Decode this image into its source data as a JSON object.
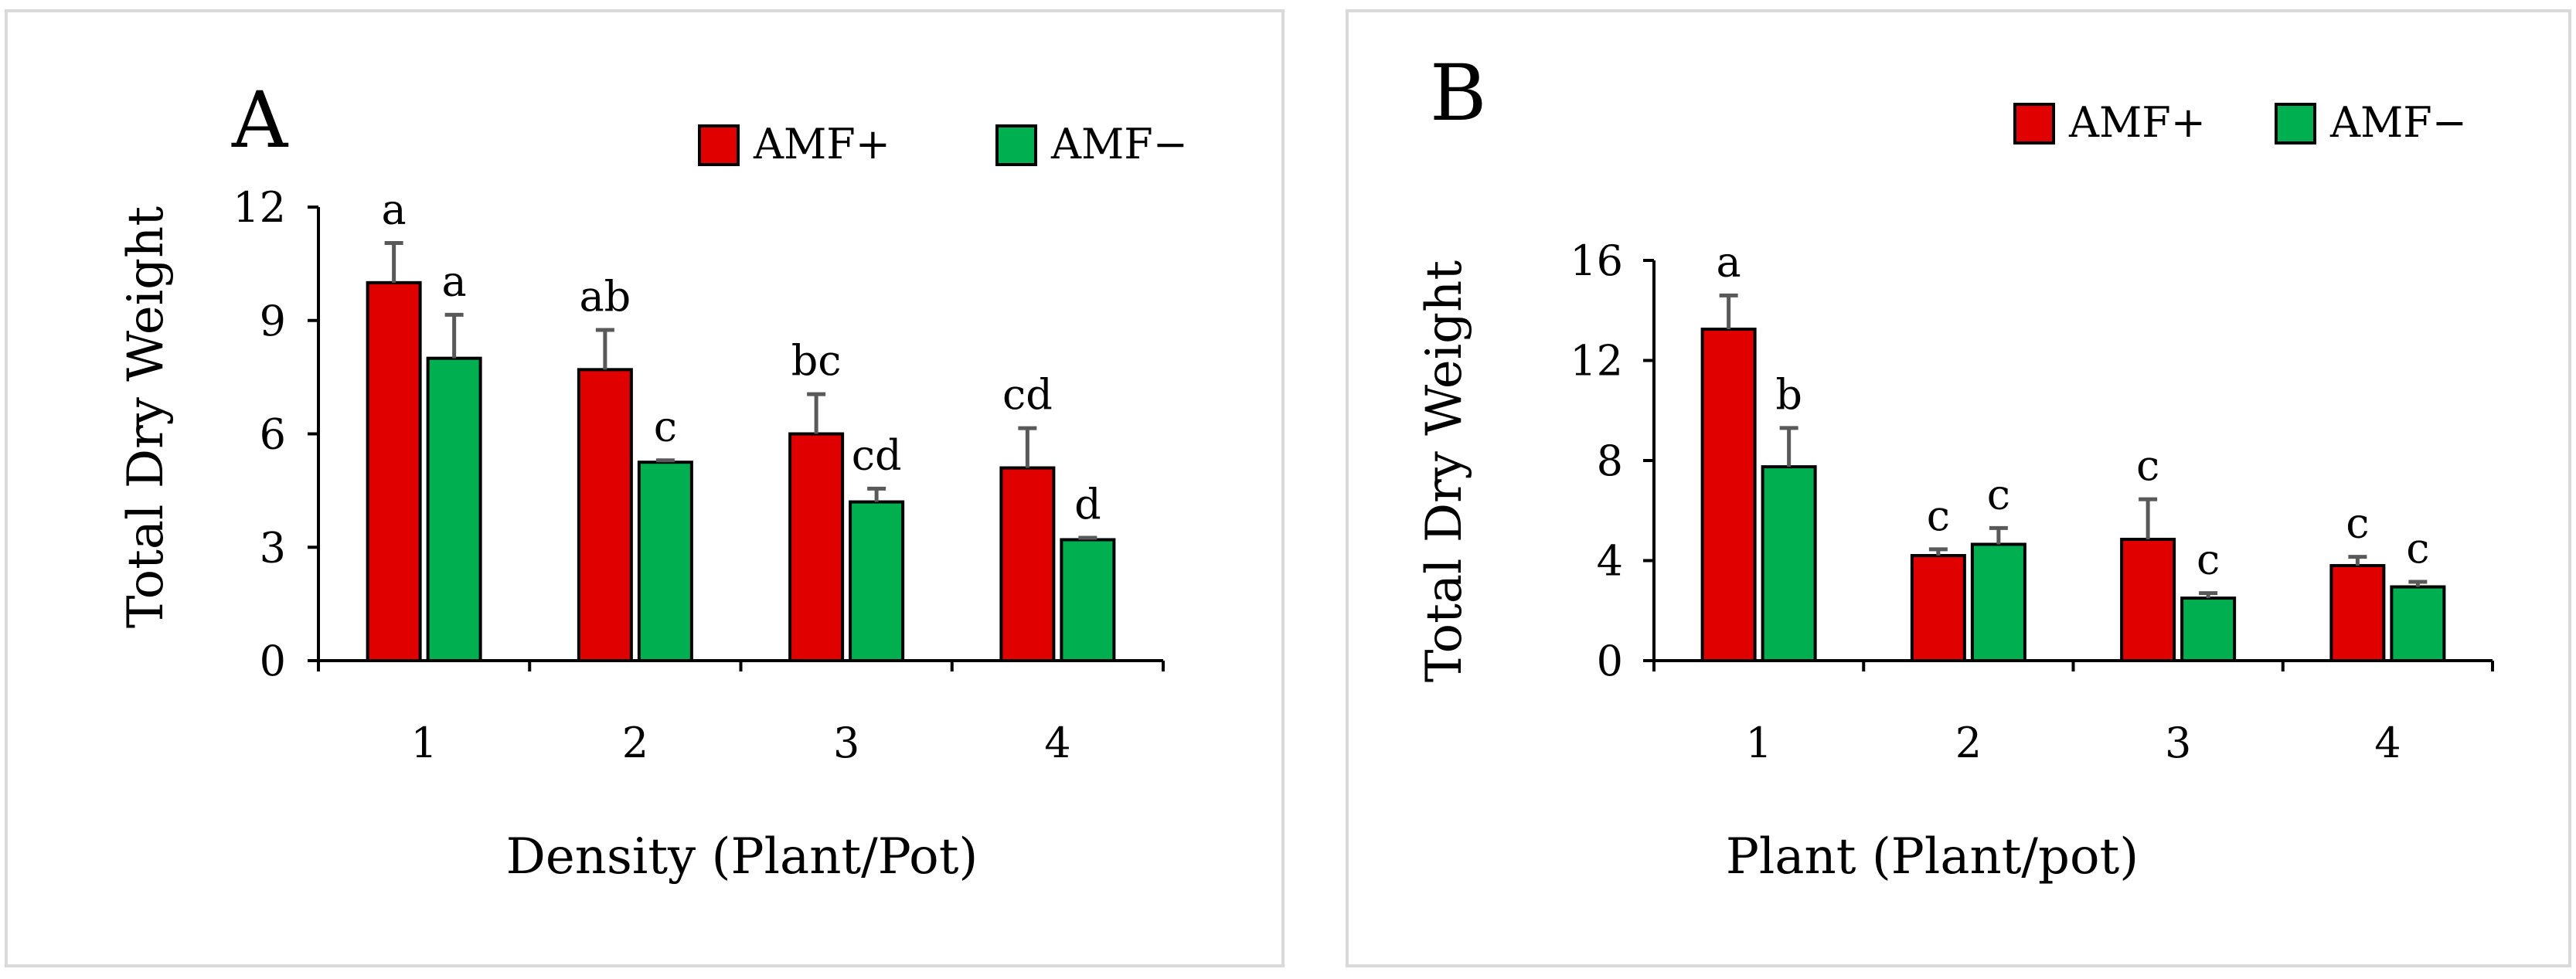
{
  "chart_data": [
    {
      "panel": "A",
      "type": "bar",
      "title": "",
      "xlabel": "Density (Plant/Pot)",
      "ylabel": "Total Dry Weight",
      "categories": [
        "1",
        "2",
        "3",
        "4"
      ],
      "ylim": [
        0,
        12
      ],
      "yticks": [
        "0",
        "3",
        "6",
        "9",
        "12"
      ],
      "grid": false,
      "legend_position": "top-right",
      "series": [
        {
          "name": "AMF+",
          "color": "#e00000",
          "values": [
            10.0,
            7.7,
            6.0,
            5.1
          ],
          "errors": [
            1.05,
            1.05,
            1.05,
            1.05
          ],
          "letters": [
            "a",
            "ab",
            "bc",
            "cd"
          ]
        },
        {
          "name": "AMF−",
          "color": "#00b050",
          "values": [
            8.0,
            5.25,
            4.2,
            3.2
          ],
          "errors": [
            1.15,
            0.05,
            0.35,
            0.05
          ],
          "letters": [
            "a",
            "c",
            "cd",
            "d"
          ]
        }
      ]
    },
    {
      "panel": "B",
      "type": "bar",
      "title": "",
      "xlabel": "Plant (Plant/pot)",
      "ylabel": "Total Dry Weight",
      "categories": [
        "1",
        "2",
        "3",
        "4"
      ],
      "ylim": [
        0,
        16
      ],
      "yticks": [
        "0",
        "4",
        "8",
        "12",
        "16"
      ],
      "grid": false,
      "legend_position": "top-right",
      "series": [
        {
          "name": "AMF+",
          "color": "#e00000",
          "values": [
            13.25,
            4.2,
            4.85,
            3.8
          ],
          "errors": [
            1.35,
            0.25,
            1.6,
            0.35
          ],
          "letters": [
            "a",
            "c",
            "c",
            "c"
          ]
        },
        {
          "name": "AMF−",
          "color": "#00b050",
          "values": [
            7.75,
            4.65,
            2.5,
            2.95
          ],
          "errors": [
            1.55,
            0.65,
            0.2,
            0.2
          ],
          "letters": [
            "b",
            "c",
            "c",
            "c"
          ]
        }
      ]
    }
  ]
}
